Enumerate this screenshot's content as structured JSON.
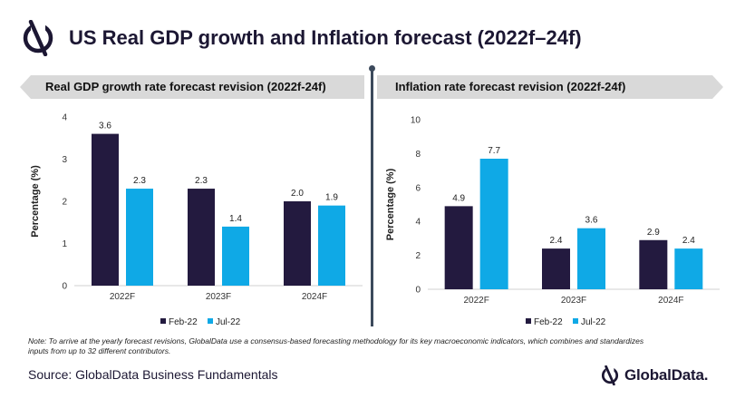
{
  "page": {
    "title": "US Real GDP growth and Inflation forecast (2022f–24f)",
    "note": "Note: To arrive at the yearly forecast revisions, GlobalData use a consensus-based forecasting methodology for its key macroeconomic indicators, which combines and standardizes inputs from up to 32 different contributors.",
    "source": "Source: GlobalData Business Fundamentals",
    "brand": "GlobalData.",
    "colors": {
      "feb": "#231a3f",
      "jul": "#0fa9e6",
      "ribbon": "#d9d9d9",
      "divider": "#3c4a5c"
    }
  },
  "chart_data": [
    {
      "type": "bar",
      "title": "Real GDP growth rate forecast revision (2022f-24f)",
      "xlabel": "",
      "ylabel": "Percentage (%)",
      "ylim": [
        0,
        4
      ],
      "yticks": [
        0,
        1,
        2,
        3,
        4
      ],
      "categories": [
        "2022F",
        "2023F",
        "2024F"
      ],
      "series": [
        {
          "name": "Feb-22",
          "values": [
            3.6,
            2.3,
            2.0
          ],
          "labels": [
            "3.6",
            "2.3",
            "2.0"
          ]
        },
        {
          "name": "Jul-22",
          "values": [
            2.3,
            1.4,
            1.9
          ],
          "labels": [
            "2.3",
            "1.4",
            "1.9"
          ]
        }
      ],
      "legend": "bottom",
      "grid": false
    },
    {
      "type": "bar",
      "title": "Inflation rate forecast revision (2022f-24f)",
      "xlabel": "",
      "ylabel": "Percentage (%)",
      "ylim": [
        0,
        10
      ],
      "yticks": [
        0,
        2,
        4,
        6,
        8,
        10
      ],
      "categories": [
        "2022F",
        "2023F",
        "2024F"
      ],
      "series": [
        {
          "name": "Feb-22",
          "values": [
            4.9,
            2.4,
            2.9
          ],
          "labels": [
            "4.9",
            "2.4",
            "2.9"
          ]
        },
        {
          "name": "Jul-22",
          "values": [
            7.7,
            3.6,
            2.4
          ],
          "labels": [
            "7.7",
            "3.6",
            "2.4"
          ]
        }
      ],
      "legend": "bottom",
      "grid": false
    }
  ]
}
